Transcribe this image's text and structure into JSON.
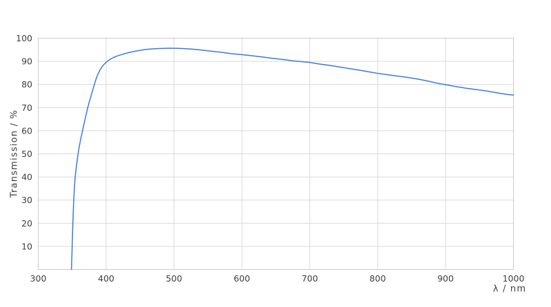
{
  "page": {
    "background_color": "#ffffff"
  },
  "chart_data": {
    "type": "line",
    "title": "",
    "xlabel": "λ / nm",
    "ylabel": "Transmission / %",
    "xlim": [
      300,
      1000
    ],
    "ylim": [
      0,
      100
    ],
    "x_ticks": [
      300,
      400,
      500,
      600,
      700,
      800,
      900,
      1000
    ],
    "y_ticks": [
      10,
      20,
      30,
      40,
      50,
      60,
      70,
      80,
      90,
      100
    ],
    "grid": "on",
    "legend_position": "none",
    "colors": {
      "line": "#3b78e3",
      "grid": "#d9d9d9",
      "frame": "#cbcbcb",
      "text": "#3d3d3d",
      "background": "#ffffff"
    },
    "series": [
      {
        "name": "Transmission",
        "points": [
          [
            349,
            0
          ],
          [
            350,
            10
          ],
          [
            351,
            20
          ],
          [
            352,
            28
          ],
          [
            353,
            34
          ],
          [
            354,
            38.5
          ],
          [
            355,
            41.5
          ],
          [
            356,
            44
          ],
          [
            358,
            48.5
          ],
          [
            360,
            52.5
          ],
          [
            363,
            57
          ],
          [
            366,
            61
          ],
          [
            369,
            65
          ],
          [
            372,
            68.8
          ],
          [
            375,
            72.3
          ],
          [
            378,
            75.3
          ],
          [
            381,
            78.3
          ],
          [
            384,
            81.3
          ],
          [
            387,
            83.8
          ],
          [
            391,
            86.3
          ],
          [
            395,
            88.1
          ],
          [
            400,
            89.6
          ],
          [
            405,
            90.7
          ],
          [
            411,
            91.7
          ],
          [
            418,
            92.5
          ],
          [
            426,
            93.2
          ],
          [
            435,
            93.9
          ],
          [
            445,
            94.5
          ],
          [
            455,
            95
          ],
          [
            465,
            95.3
          ],
          [
            475,
            95.5
          ],
          [
            485,
            95.6
          ],
          [
            495,
            95.7
          ],
          [
            505,
            95.6
          ],
          [
            515,
            95.5
          ],
          [
            525,
            95.3
          ],
          [
            540,
            94.9
          ],
          [
            555,
            94.4
          ],
          [
            570,
            93.9
          ],
          [
            585,
            93.3
          ],
          [
            600,
            92.9
          ],
          [
            615,
            92.4
          ],
          [
            630,
            91.9
          ],
          [
            645,
            91.3
          ],
          [
            660,
            90.8
          ],
          [
            675,
            90.2
          ],
          [
            690,
            89.8
          ],
          [
            700,
            89.5
          ],
          [
            715,
            88.8
          ],
          [
            730,
            88.2
          ],
          [
            745,
            87.5
          ],
          [
            760,
            86.8
          ],
          [
            775,
            86.1
          ],
          [
            790,
            85.3
          ],
          [
            800,
            84.8
          ],
          [
            815,
            84.2
          ],
          [
            830,
            83.6
          ],
          [
            845,
            83
          ],
          [
            860,
            82.3
          ],
          [
            875,
            81.4
          ],
          [
            890,
            80.4
          ],
          [
            900,
            79.9
          ],
          [
            915,
            79.1
          ],
          [
            930,
            78.4
          ],
          [
            945,
            77.8
          ],
          [
            960,
            77.2
          ],
          [
            975,
            76.4
          ],
          [
            990,
            75.7
          ],
          [
            1000,
            75.4
          ]
        ]
      }
    ]
  }
}
